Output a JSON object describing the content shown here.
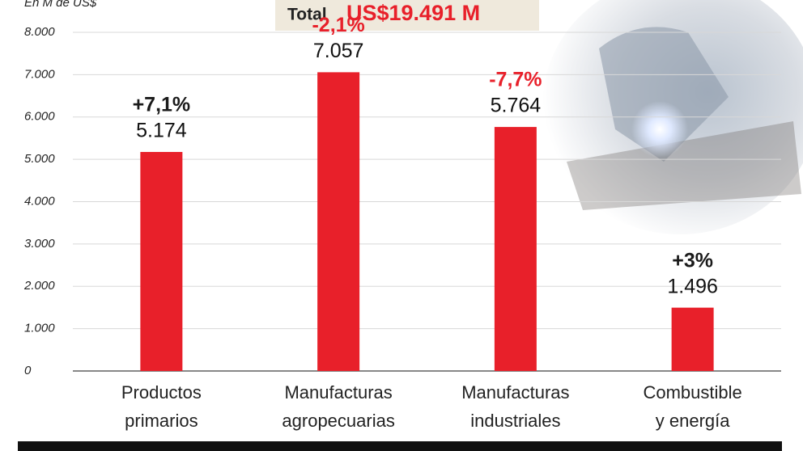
{
  "chart_data": {
    "type": "bar",
    "y_label": "En M de US$",
    "total_label": "Total",
    "total_value": "US$19.491 M",
    "categories": [
      [
        "Productos",
        "primarios"
      ],
      [
        "Manufacturas",
        "agropecuarias"
      ],
      [
        "Manufacturas",
        "industriales"
      ],
      [
        "Combustible",
        "y energía"
      ]
    ],
    "values": [
      5174,
      7057,
      5764,
      1496
    ],
    "value_labels": [
      "5.174",
      "7.057",
      "5.764",
      "1.496"
    ],
    "changes": [
      "+7,1%",
      "-2,1%",
      "-7,7%",
      "+3%"
    ],
    "change_colors": [
      "#1a1a1a",
      "#e8202a",
      "#e8202a",
      "#1a1a1a"
    ],
    "color": "#e8202a",
    "ylim": [
      0,
      8000
    ],
    "yticks": [
      0,
      {
        "value": 1000,
        "label": "1.000"
      },
      {
        "value": 2000,
        "label": "2.000"
      },
      {
        "value": 3000,
        "label": "3.000"
      },
      {
        "value": 4000,
        "label": "4.000"
      },
      {
        "value": 5000,
        "label": "5.000"
      },
      {
        "value": 6000,
        "label": "6.000"
      },
      {
        "value": 7000,
        "label": "7.000"
      },
      {
        "value": 8000,
        "label": "8.000"
      }
    ],
    "grid": true
  }
}
